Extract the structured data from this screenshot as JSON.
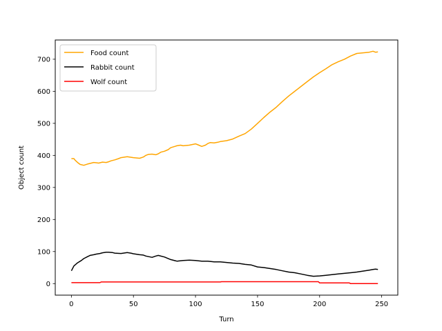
{
  "chart_data": {
    "type": "line",
    "title": "",
    "xlabel": "Turn",
    "ylabel": "Object count",
    "xlim": [
      -13,
      263
    ],
    "ylim": [
      -36,
      760
    ],
    "xticks": [
      0,
      50,
      100,
      150,
      200,
      250
    ],
    "yticks": [
      0,
      100,
      200,
      300,
      400,
      500,
      600,
      700
    ],
    "grid": false,
    "legend_position": "top-left",
    "series": [
      {
        "name": "Food count",
        "color": "#ffa500",
        "x": [
          0,
          2,
          3,
          5,
          7,
          10,
          13,
          15,
          18,
          20,
          22,
          25,
          28,
          30,
          32,
          35,
          38,
          40,
          45,
          50,
          55,
          58,
          60,
          62,
          65,
          68,
          70,
          72,
          75,
          78,
          80,
          85,
          88,
          90,
          95,
          100,
          102,
          105,
          108,
          110,
          112,
          115,
          118,
          120,
          125,
          130,
          135,
          140,
          145,
          150,
          155,
          160,
          165,
          170,
          175,
          180,
          185,
          190,
          195,
          200,
          205,
          210,
          215,
          220,
          225,
          230,
          235,
          240,
          243,
          245,
          247
        ],
        "y": [
          390,
          390,
          385,
          378,
          372,
          369,
          373,
          375,
          378,
          377,
          376,
          379,
          378,
          380,
          383,
          386,
          390,
          393,
          396,
          393,
          391,
          395,
          400,
          403,
          404,
          402,
          405,
          410,
          413,
          418,
          424,
          430,
          432,
          430,
          432,
          436,
          433,
          428,
          432,
          437,
          440,
          439,
          441,
          443,
          446,
          451,
          460,
          468,
          482,
          500,
          518,
          535,
          550,
          568,
          585,
          600,
          615,
          630,
          645,
          658,
          670,
          683,
          692,
          700,
          710,
          718,
          720,
          722,
          725,
          722,
          723
        ]
      },
      {
        "name": "Rabbit count",
        "color": "#000000",
        "x": [
          0,
          2,
          5,
          8,
          10,
          13,
          15,
          18,
          20,
          23,
          25,
          28,
          30,
          33,
          35,
          40,
          45,
          48,
          50,
          55,
          58,
          60,
          65,
          68,
          70,
          75,
          80,
          85,
          90,
          95,
          100,
          105,
          110,
          115,
          120,
          125,
          130,
          135,
          140,
          145,
          150,
          155,
          160,
          165,
          170,
          175,
          180,
          185,
          190,
          195,
          200,
          205,
          210,
          215,
          220,
          225,
          230,
          235,
          240,
          243,
          245,
          247
        ],
        "y": [
          40,
          55,
          65,
          72,
          78,
          84,
          88,
          90,
          92,
          94,
          96,
          98,
          98,
          97,
          95,
          94,
          97,
          95,
          93,
          90,
          89,
          86,
          82,
          86,
          88,
          83,
          75,
          70,
          72,
          73,
          72,
          70,
          70,
          68,
          68,
          66,
          64,
          63,
          60,
          58,
          52,
          50,
          47,
          44,
          40,
          36,
          34,
          30,
          26,
          23,
          24,
          26,
          28,
          30,
          32,
          34,
          36,
          39,
          42,
          44,
          45,
          44
        ]
      },
      {
        "name": "Wolf count",
        "color": "#ff0000",
        "x": [
          0,
          23,
          24,
          120,
          121,
          199,
          200,
          224,
          225,
          247
        ],
        "y": [
          3,
          3,
          5,
          5,
          6,
          6,
          2,
          2,
          0,
          0
        ]
      }
    ]
  }
}
